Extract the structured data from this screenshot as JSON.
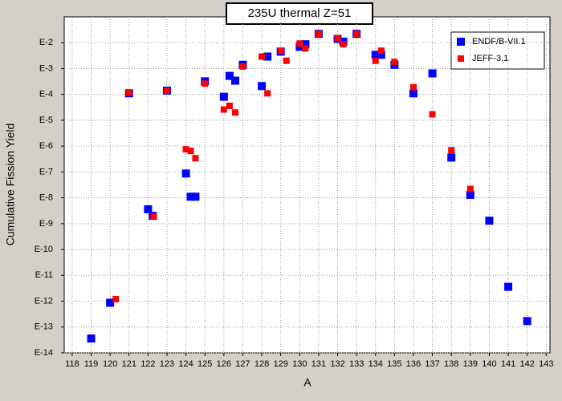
{
  "chart_data": {
    "type": "scatter",
    "title": "235U thermal Z=51",
    "xlabel": "A",
    "ylabel": "Cumulative Fission Yield",
    "log_y": true,
    "grid": true,
    "legend": "upper right",
    "xlim": [
      117.58,
      143.2
    ],
    "ylim": [
      1e-14,
      0.1
    ],
    "xticks": [
      118,
      119,
      120,
      121,
      122,
      123,
      124,
      125,
      126,
      127,
      128,
      129,
      130,
      131,
      132,
      133,
      134,
      135,
      136,
      137,
      138,
      139,
      140,
      141,
      142,
      143
    ],
    "yticks": [
      {
        "value": 1e-14,
        "label": "E-14"
      },
      {
        "value": 1e-13,
        "label": "E-13"
      },
      {
        "value": 1e-12,
        "label": "E-12"
      },
      {
        "value": 1e-11,
        "label": "E-11"
      },
      {
        "value": 1e-10,
        "label": "E-10"
      },
      {
        "value": 1e-09,
        "label": "E-9"
      },
      {
        "value": 1e-08,
        "label": "E-8"
      },
      {
        "value": 1e-07,
        "label": "E-7"
      },
      {
        "value": 1e-06,
        "label": "E-6"
      },
      {
        "value": 1e-05,
        "label": "E-5"
      },
      {
        "value": 0.0001,
        "label": "E-4"
      },
      {
        "value": 0.001,
        "label": "E-3"
      },
      {
        "value": 0.01,
        "label": "E-2"
      }
    ],
    "series": [
      {
        "name": "ENDF/B-VII.1",
        "color": "#0000ff",
        "marker": "square",
        "x": [
          119,
          120,
          121,
          122,
          122.25,
          123,
          124,
          124.25,
          124.5,
          125,
          126,
          126.3,
          126.6,
          127,
          128,
          128.3,
          129,
          130,
          130.3,
          131,
          132,
          132.3,
          133,
          134,
          134.3,
          135,
          136,
          137,
          138,
          139,
          140,
          141,
          142
        ],
        "values": [
          3.6e-14,
          8.7e-13,
          0.00011,
          3.6e-09,
          2e-09,
          0.00014,
          8.7e-08,
          1.1e-08,
          1.1e-08,
          0.00032,
          8.1e-05,
          0.00052,
          0.00034,
          0.0014,
          0.00021,
          0.0029,
          0.0045,
          0.0069,
          0.0087,
          0.022,
          0.014,
          0.011,
          0.022,
          0.0034,
          0.0034,
          0.0014,
          0.00011,
          0.00065,
          3.6e-07,
          1.3e-08,
          1.3e-09,
          3.6e-12,
          1.7e-13
        ]
      },
      {
        "name": "JEFF-3.1",
        "color": "#ff0000",
        "marker": "small-square",
        "x": [
          120.3,
          121,
          122.3,
          123,
          124,
          124.25,
          124.5,
          125,
          126,
          126.3,
          126.6,
          127,
          128,
          128.3,
          129,
          129.3,
          130,
          130.3,
          131,
          132,
          132.3,
          133,
          134,
          134.3,
          135,
          136,
          137,
          138,
          139
        ],
        "values": [
          1.2e-12,
          0.00012,
          1.9e-09,
          0.00014,
          7.5e-07,
          6.5e-07,
          3.4e-07,
          0.00026,
          2.6e-05,
          3.6e-05,
          2e-05,
          0.0012,
          0.0029,
          0.00011,
          0.0049,
          0.002,
          0.0093,
          0.006,
          0.022,
          0.015,
          0.0087,
          0.022,
          0.002,
          0.0049,
          0.0018,
          0.00019,
          1.7e-05,
          6.9e-07,
          2.2e-08
        ]
      }
    ]
  }
}
